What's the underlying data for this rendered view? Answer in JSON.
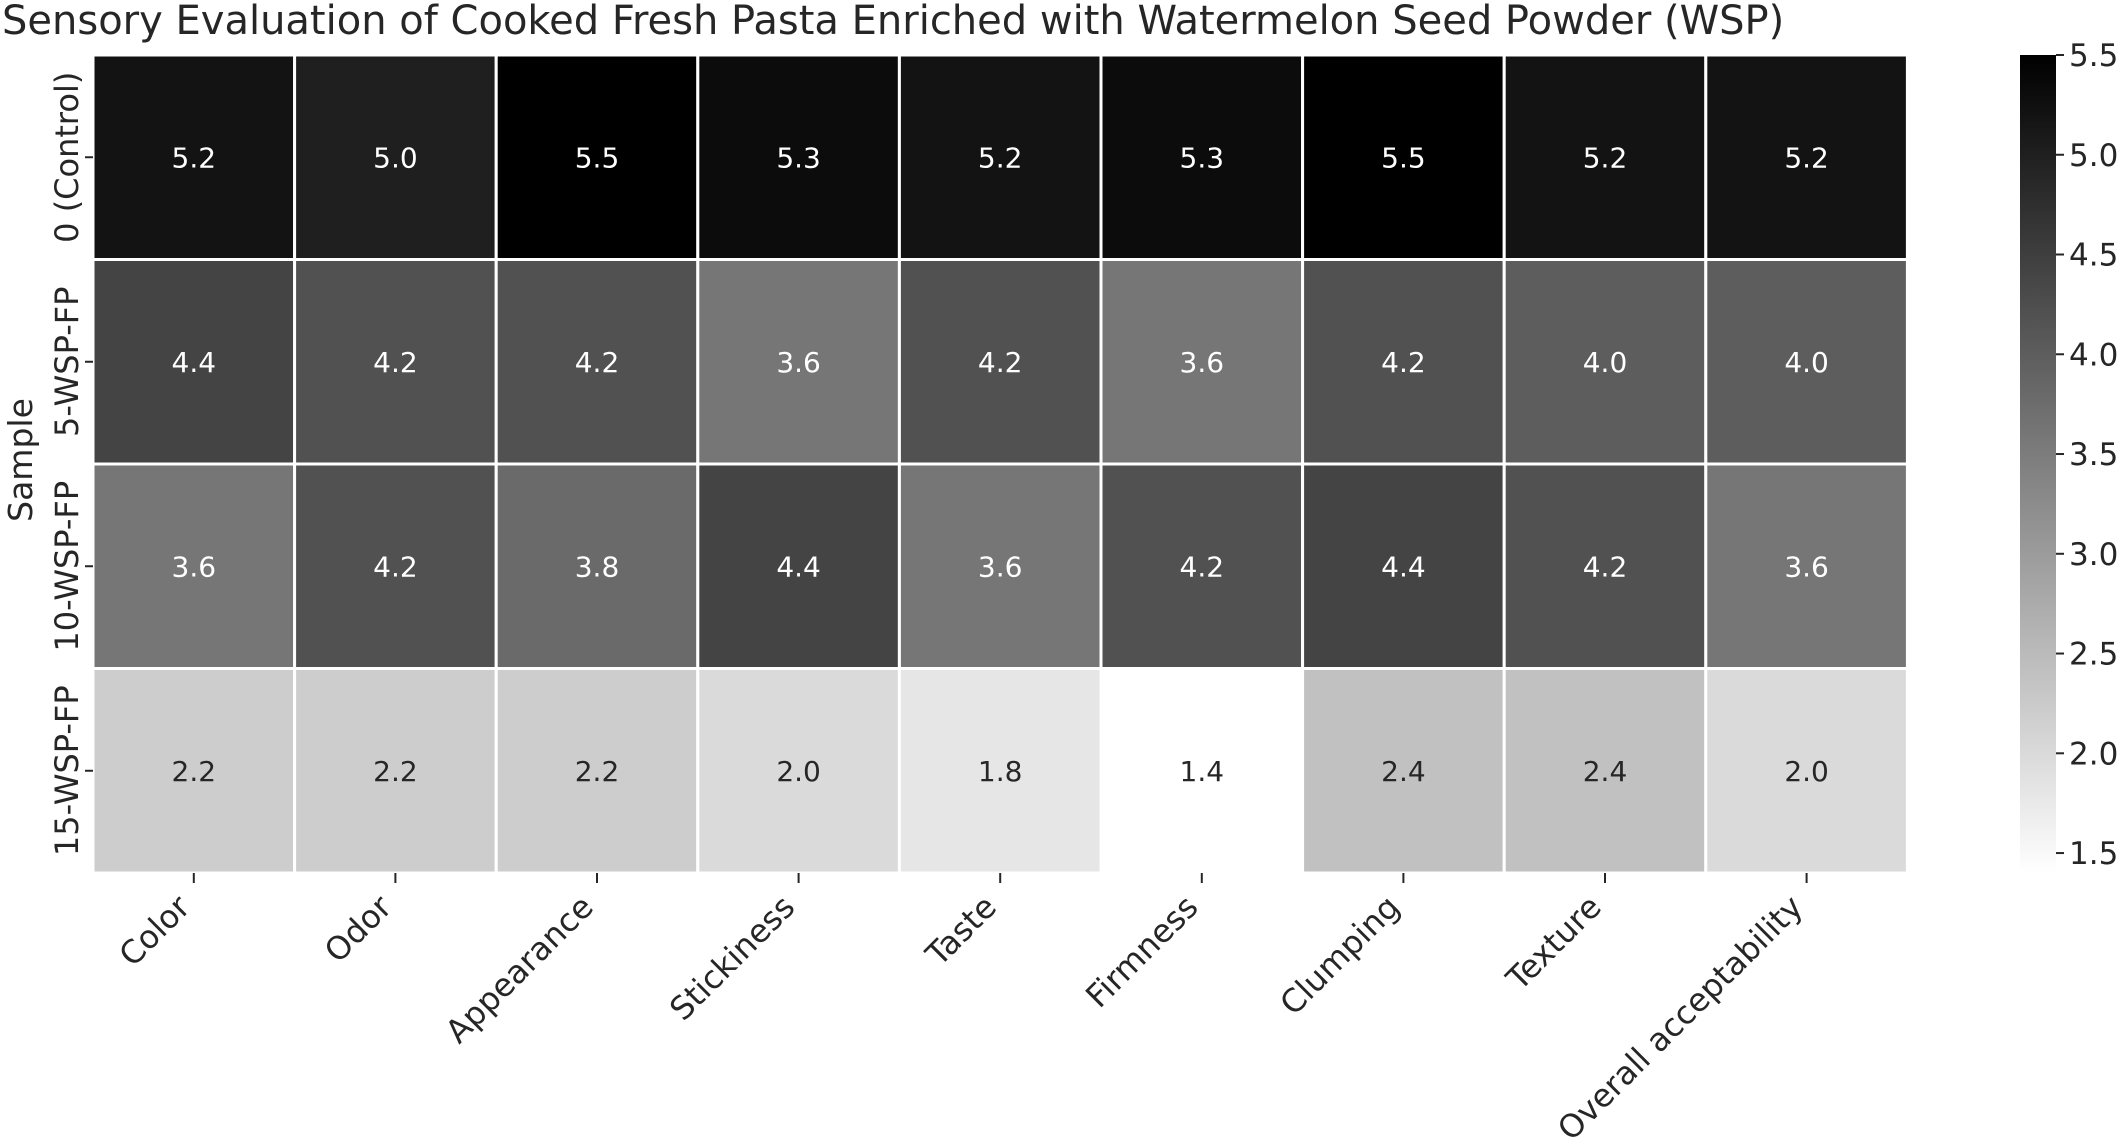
{
  "chart_data": {
    "type": "heatmap",
    "title": "Sensory Evaluation of Cooked Fresh Pasta Enriched with Watermelon Seed Powder (WSP)",
    "xlabel": "",
    "ylabel": "Sample",
    "columns": [
      "Color",
      "Odor",
      "Appearance",
      "Stickiness",
      "Taste",
      "Firmness",
      "Clumping",
      "Texture",
      "Overall acceptability"
    ],
    "rows": [
      "0 (Control)",
      "5-WSP-FP",
      "10-WSP-FP",
      "15-WSP-FP"
    ],
    "values": [
      [
        5.2,
        5.0,
        5.5,
        5.3,
        5.2,
        5.3,
        5.5,
        5.2,
        5.2
      ],
      [
        4.4,
        4.2,
        4.2,
        3.6,
        4.2,
        3.6,
        4.2,
        4.0,
        4.0
      ],
      [
        3.6,
        4.2,
        3.8,
        4.4,
        3.6,
        4.2,
        4.4,
        4.2,
        3.6
      ],
      [
        2.2,
        2.2,
        2.2,
        2.0,
        1.8,
        1.4,
        2.4,
        2.4,
        2.0
      ]
    ],
    "value_format": "1 decimal",
    "colorbar": {
      "range": [
        1.4,
        5.5
      ],
      "ticks": [
        "1.5",
        "2.0",
        "2.5",
        "3.0",
        "3.5",
        "4.0",
        "4.5",
        "5.0",
        "5.5"
      ],
      "low_color": "#ffffff",
      "high_color": "#000000"
    },
    "grid": false,
    "cell_separator_color": "#ffffff"
  }
}
